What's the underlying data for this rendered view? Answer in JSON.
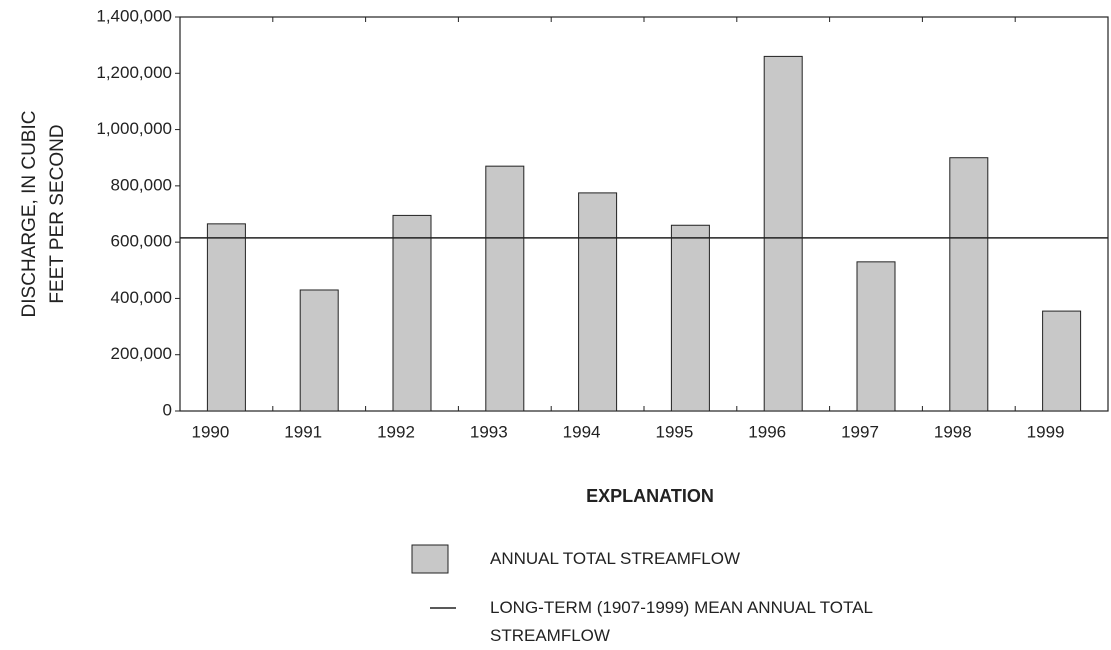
{
  "chart_data": {
    "type": "bar",
    "y_label": [
      "DISCHARGE, IN CUBIC",
      "FEET PER SECOND"
    ],
    "categories": [
      "1990",
      "1991",
      "1992",
      "1993",
      "1994",
      "1995",
      "1996",
      "1997",
      "1998",
      "1999"
    ],
    "series": [
      {
        "name": "ANNUAL TOTAL STREAMFLOW",
        "color": "#c8c8c8",
        "values": [
          665000,
          430000,
          695000,
          870000,
          775000,
          660000,
          1260000,
          530000,
          900000,
          355000
        ]
      }
    ],
    "reference_line": {
      "name": "LONG-TERM (1907-1999) MEAN ANNUAL TOTAL STREAMFLOW",
      "value": 615000,
      "color": "#222222"
    },
    "legend_title": "EXPLANATION",
    "ylim": [
      0,
      1400000
    ],
    "yticks": [
      0,
      {
        "value": 200000,
        "label": "200,000"
      },
      {
        "value": 400000,
        "label": "400,000"
      },
      {
        "value": 600000,
        "label": "600,000"
      },
      {
        "value": 800000,
        "label": "800,000"
      },
      {
        "value": 1000000,
        "label": "1,000,000"
      },
      {
        "value": 1200000,
        "label": "1,200,000"
      },
      {
        "value": 1400000,
        "label": "1,400,000"
      }
    ]
  }
}
